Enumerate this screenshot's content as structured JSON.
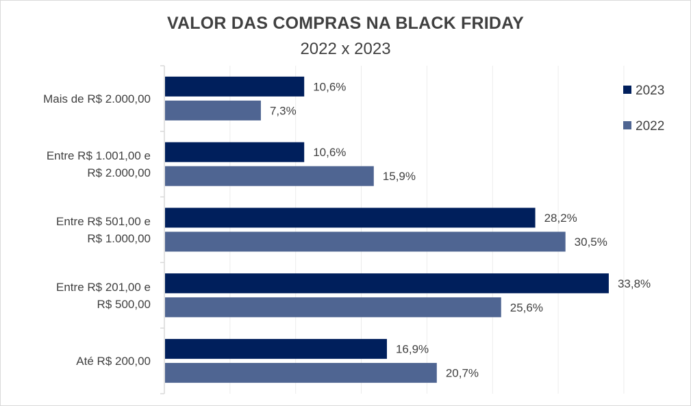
{
  "chart_data": {
    "type": "bar",
    "orientation": "horizontal",
    "title": "VALOR DAS COMPRAS NA BLACK FRIDAY",
    "subtitle": "2022 x 2023",
    "categories": [
      [
        "Mais de R$ 2.000,00"
      ],
      [
        "Entre R$ 1.001,00 e",
        "R$ 2.000,00"
      ],
      [
        "Entre R$ 501,00 e",
        "R$ 1.000,00"
      ],
      [
        "Entre R$ 201,00 e",
        "R$ 500,00"
      ],
      [
        "Até R$ 200,00"
      ]
    ],
    "series": [
      {
        "name": "2023",
        "color": "#001f5c",
        "values": [
          10.6,
          10.6,
          28.2,
          33.8,
          16.9
        ],
        "labels": [
          "10,6%",
          "10,6%",
          "28,2%",
          "33,8%",
          "16,9%"
        ]
      },
      {
        "name": "2022",
        "color": "#4f6592",
        "values": [
          7.3,
          15.9,
          30.5,
          25.6,
          20.7
        ],
        "labels": [
          "7,3%",
          "15,9%",
          "30,5%",
          "25,6%",
          "20,7%"
        ]
      }
    ],
    "xlim": [
      0,
      35
    ],
    "grid": true,
    "legend_position": "top-right"
  }
}
